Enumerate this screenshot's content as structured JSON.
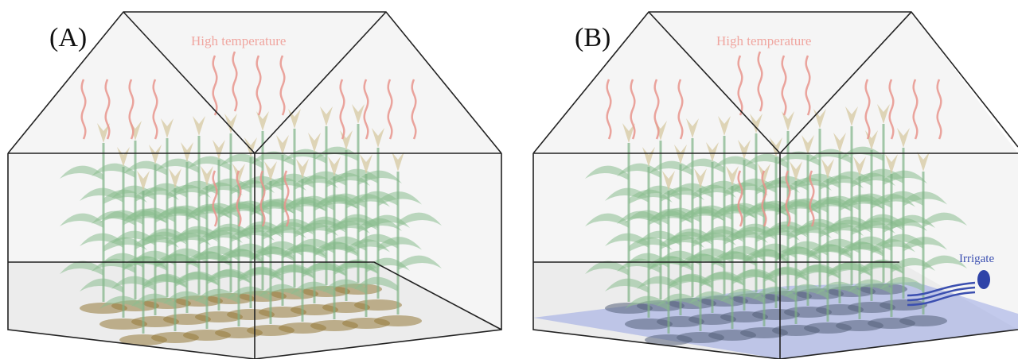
{
  "panels": [
    {
      "label": "(A)",
      "annotation": "High temperature"
    },
    {
      "label": "(B)",
      "annotation": "High temperature",
      "irrigation": "Irrigate"
    }
  ]
}
